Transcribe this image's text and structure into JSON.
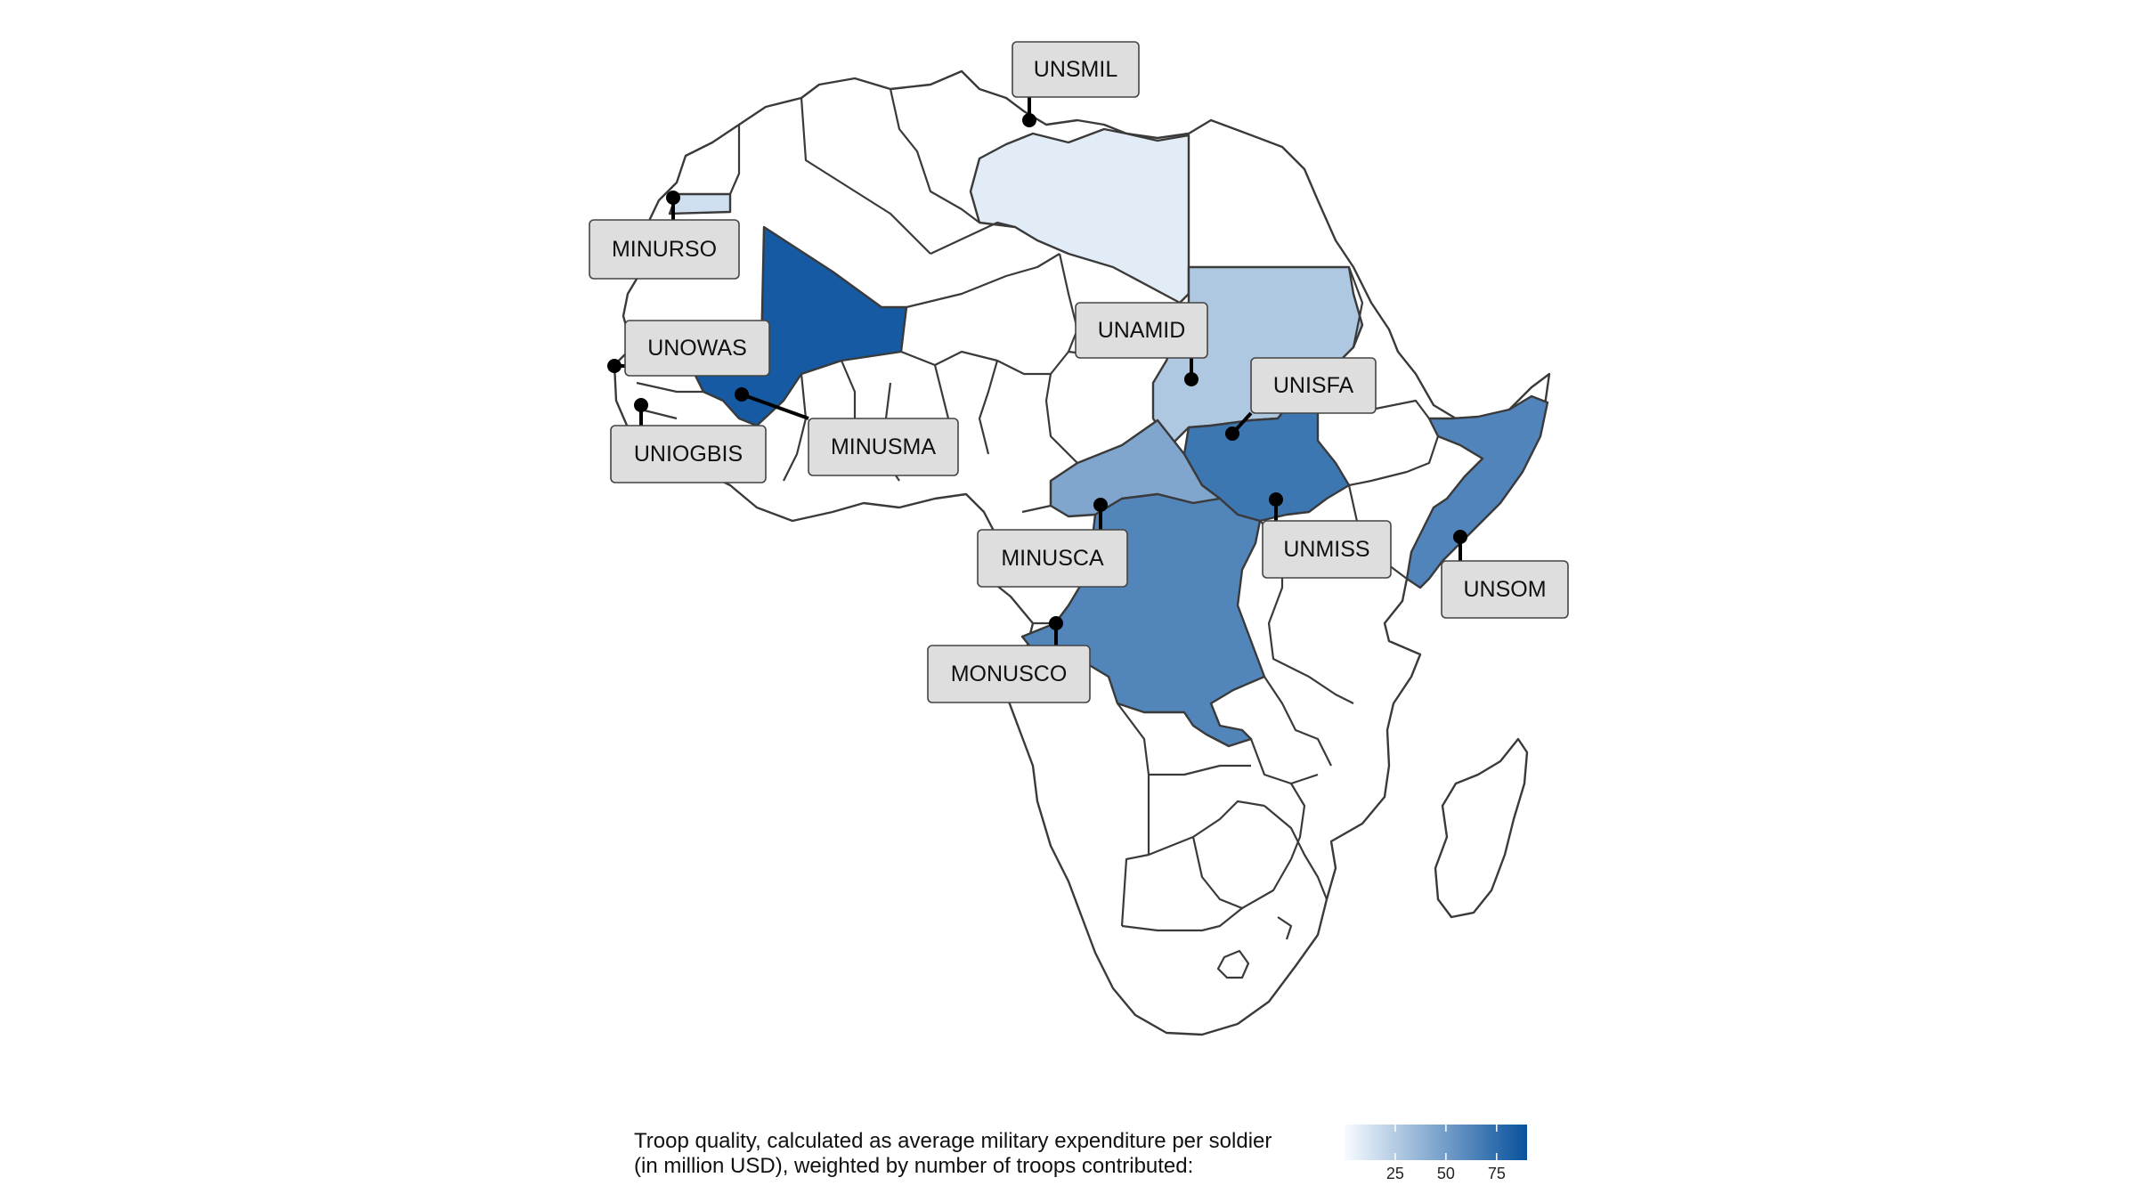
{
  "colors": {
    "scale_low": "#f7fbff",
    "scale_high": "#08519c",
    "no_data": "#ffffff",
    "border": "#3a3a3a"
  },
  "missions": [
    {
      "id": "unsmil",
      "label": "UNSMIL",
      "country": "Libya",
      "value": 8
    },
    {
      "id": "minurso",
      "label": "MINURSO",
      "country": "Western Sahara",
      "value": 15
    },
    {
      "id": "unowas",
      "label": "UNOWAS",
      "country": "Senegal",
      "value": null
    },
    {
      "id": "uniogbis",
      "label": "UNIOGBIS",
      "country": "Guinea-Bissau",
      "value": null
    },
    {
      "id": "minusma",
      "label": "MINUSMA",
      "country": "Mali",
      "value": 85
    },
    {
      "id": "unamid",
      "label": "UNAMID",
      "country": "Sudan",
      "value": 27
    },
    {
      "id": "unisfa",
      "label": "UNISFA",
      "country": "Abyei",
      "value": null
    },
    {
      "id": "minusca",
      "label": "MINUSCA",
      "country": "Central African Republic",
      "value": 45
    },
    {
      "id": "unmiss",
      "label": "UNMISS",
      "country": "South Sudan",
      "value": 70
    },
    {
      "id": "unsom",
      "label": "UNSOM",
      "country": "Somalia",
      "value": 63
    },
    {
      "id": "monusco",
      "label": "MONUSCO",
      "country": "DR Congo",
      "value": 62
    }
  ],
  "legend": {
    "title_line1": "Troop quality, calculated as average military expenditure per soldier",
    "title_line2": "(in million USD), weighted by number of troops contributed:",
    "min": 0,
    "max": 90,
    "ticks": [
      {
        "value": 25,
        "label": "25"
      },
      {
        "value": 50,
        "label": "50"
      },
      {
        "value": 75,
        "label": "75"
      }
    ]
  }
}
